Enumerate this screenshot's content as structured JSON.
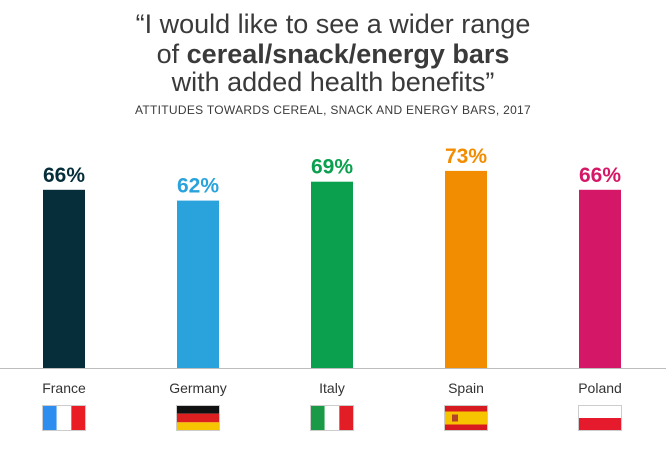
{
  "header": {
    "title_line1": "“I would like to see a wider range",
    "title_line2_prefix": "of ",
    "title_line2_bold": "cereal/snack/energy bars",
    "title_line3": "with added health benefits”",
    "subtitle": "ATTITUDES TOWARDS CEREAL, SNACK AND ENERGY BARS, 2017"
  },
  "chart_data": {
    "type": "bar",
    "title": "“I would like to see a wider range of cereal/snack/energy bars with added health benefits”",
    "subtitle": "ATTITUDES TOWARDS CEREAL, SNACK AND ENERGY BARS, 2017",
    "categories": [
      "France",
      "Germany",
      "Italy",
      "Spain",
      "Poland"
    ],
    "values": [
      66,
      62,
      69,
      73,
      66
    ],
    "value_labels": [
      "66%",
      "62%",
      "69%",
      "73%",
      "66%"
    ],
    "unit": "%",
    "colors": [
      "#062e3a",
      "#2aa3dc",
      "#0aa04e",
      "#f28c00",
      "#d41867"
    ],
    "ylim": [
      0,
      100
    ],
    "grid": false,
    "legend": "none",
    "flags": [
      "france-flag-icon",
      "germany-flag-icon",
      "italy-flag-icon",
      "spain-flag-icon",
      "poland-flag-icon"
    ]
  }
}
